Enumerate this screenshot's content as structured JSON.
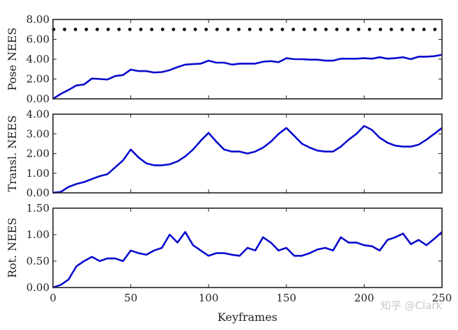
{
  "watermark": "知乎 @Clark",
  "chart_data": {
    "type": "line",
    "layout": "3 vertically stacked subplots sharing x-axis",
    "xlabel": "Keyframes",
    "xlim": [
      0,
      250
    ],
    "xticks": [
      0,
      50,
      100,
      150,
      200,
      250
    ],
    "x": [
      0,
      5,
      10,
      15,
      20,
      25,
      30,
      35,
      40,
      45,
      50,
      55,
      60,
      65,
      70,
      75,
      80,
      85,
      90,
      95,
      100,
      105,
      110,
      115,
      120,
      125,
      130,
      135,
      140,
      145,
      150,
      155,
      160,
      165,
      170,
      175,
      180,
      185,
      190,
      195,
      200,
      205,
      210,
      215,
      220,
      225,
      230,
      235,
      240,
      245,
      250
    ],
    "line_color": "#0a0ad0",
    "subplots": [
      {
        "name": "pose",
        "ylabel": "Pose NEES",
        "ylim": [
          0,
          8
        ],
        "yticks": [
          "0.00",
          "2.00",
          "4.00",
          "6.00",
          "8.00"
        ],
        "series": [
          {
            "name": "Pose NEES",
            "style": "line",
            "values": [
              0,
              0.5,
              0.9,
              1.35,
              1.45,
              2.05,
              2.0,
              1.95,
              2.3,
              2.4,
              2.95,
              2.8,
              2.8,
              2.65,
              2.7,
              2.9,
              3.2,
              3.45,
              3.5,
              3.55,
              3.85,
              3.65,
              3.65,
              3.45,
              3.55,
              3.55,
              3.55,
              3.75,
              3.8,
              3.7,
              4.1,
              4.0,
              4.0,
              3.95,
              3.95,
              3.85,
              3.85,
              4.05,
              4.05,
              4.05,
              4.1,
              4.05,
              4.2,
              4.05,
              4.1,
              4.2,
              4.0,
              4.25,
              4.25,
              4.3,
              4.45
            ]
          },
          {
            "name": "Bound",
            "style": "dots",
            "value": 7.0,
            "step": 7,
            "color": "#000000"
          }
        ]
      },
      {
        "name": "transl",
        "ylabel": "Transl. NEES",
        "ylim": [
          0,
          4
        ],
        "yticks": [
          "0.00",
          "1.00",
          "2.00",
          "3.00",
          "4.00"
        ],
        "series": [
          {
            "name": "Transl. NEES",
            "style": "line",
            "values": [
              0,
              0.05,
              0.3,
              0.45,
              0.55,
              0.7,
              0.85,
              0.95,
              1.3,
              1.65,
              2.2,
              1.8,
              1.5,
              1.4,
              1.4,
              1.45,
              1.6,
              1.85,
              2.2,
              2.65,
              3.05,
              2.6,
              2.2,
              2.1,
              2.1,
              2.0,
              2.1,
              2.3,
              2.6,
              3.0,
              3.3,
              2.9,
              2.5,
              2.3,
              2.15,
              2.1,
              2.1,
              2.35,
              2.7,
              3.0,
              3.4,
              3.2,
              2.8,
              2.55,
              2.4,
              2.35,
              2.35,
              2.45,
              2.7,
              3.0,
              3.3
            ]
          }
        ]
      },
      {
        "name": "rot",
        "ylabel": "Rot. NEES",
        "ylim": [
          0,
          1.5
        ],
        "yticks": [
          "0.00",
          "0.50",
          "1.00",
          "1.50"
        ],
        "series": [
          {
            "name": "Rot. NEES",
            "style": "line",
            "values": [
              0,
              0.05,
              0.15,
              0.4,
              0.5,
              0.58,
              0.5,
              0.55,
              0.55,
              0.5,
              0.7,
              0.65,
              0.62,
              0.7,
              0.75,
              1.0,
              0.85,
              1.05,
              0.8,
              0.7,
              0.6,
              0.65,
              0.65,
              0.62,
              0.6,
              0.75,
              0.7,
              0.95,
              0.85,
              0.7,
              0.75,
              0.6,
              0.6,
              0.65,
              0.72,
              0.75,
              0.7,
              0.95,
              0.85,
              0.85,
              0.8,
              0.78,
              0.7,
              0.9,
              0.95,
              1.02,
              0.82,
              0.9,
              0.8,
              0.92,
              1.05
            ]
          }
        ]
      }
    ]
  }
}
